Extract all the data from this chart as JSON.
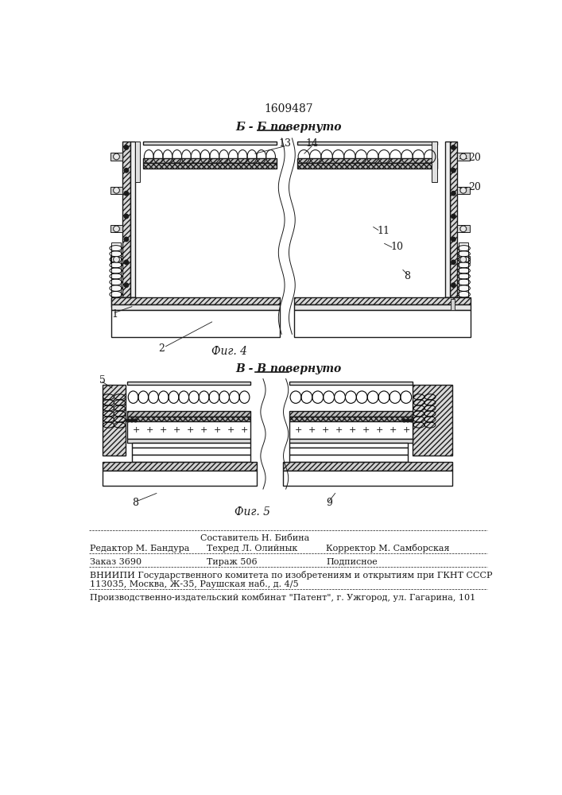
{
  "patent_number": "1609487",
  "title_fig4": "Б - Б повернуто",
  "title_fig5": "В - В повернуто",
  "fig4_label": "Фиг. 4",
  "fig5_label": "Фиг. 5",
  "footer_line1": "Составитель Н. Бибина",
  "footer_line2_left": "Редактор М. Бандура",
  "footer_line2_mid": "Техред Л. Олийнык",
  "footer_line2_right": "Корректор М. Самборская",
  "footer_line3_left": "Заказ 3690",
  "footer_line3_mid": "Тираж 506",
  "footer_line3_right": "Подписное",
  "footer_line4": "ВНИИПИ Государственного комитета по изобретениям и открытиям при ГКНТ СССР",
  "footer_line5": "113035, Москва, Ж-35, Раушская наб., д. 4/5",
  "footer_line6": "Производственно-издательский комбинат \"Патент\", г. Ужгород, ул. Гагарина, 101",
  "bg_color": "#ffffff",
  "line_color": "#1a1a1a"
}
